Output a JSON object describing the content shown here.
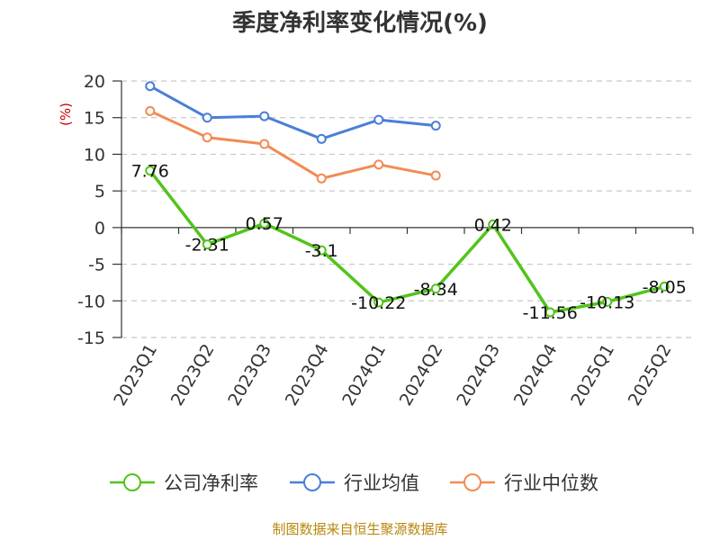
{
  "source_text": "制图数据来自恒生聚源数据库",
  "chart_data": {
    "type": "line",
    "title": "季度净利率变化情况(%)",
    "xlabel": "",
    "ylabel": "(%)",
    "categories": [
      "2023Q1",
      "2023Q2",
      "2023Q3",
      "2023Q4",
      "2024Q1",
      "2024Q2",
      "2024Q3",
      "2024Q4",
      "2025Q1",
      "2025Q2"
    ],
    "ylim": [
      -15,
      20
    ],
    "yticks": [
      -15,
      -10,
      -5,
      0,
      5,
      10,
      15,
      20
    ],
    "grid": true,
    "legend_position": "bottom",
    "series": [
      {
        "name": "公司净利率",
        "color": "#52c41a",
        "values": [
          7.76,
          -2.31,
          0.57,
          -3.1,
          -10.22,
          -8.34,
          0.42,
          -11.56,
          -10.13,
          -8.05
        ],
        "labels": [
          "7.76",
          "-2.31",
          "0.57",
          "-3.1",
          "-10.22",
          "-8.34",
          "0.42",
          "-11.56",
          "-10.13",
          "-8.05"
        ]
      },
      {
        "name": "行业均值",
        "color": "#4a7fd6",
        "values": [
          19.3,
          15.0,
          15.2,
          12.1,
          14.7,
          13.9,
          null,
          null,
          null,
          null
        ]
      },
      {
        "name": "行业中位数",
        "color": "#f28b54",
        "values": [
          15.9,
          12.3,
          11.4,
          6.7,
          8.6,
          7.1,
          null,
          null,
          null,
          null
        ]
      }
    ]
  }
}
